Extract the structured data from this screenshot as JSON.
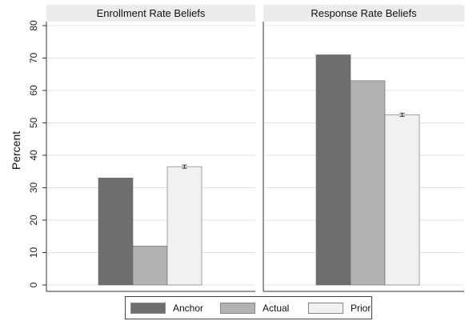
{
  "chart_data": {
    "type": "bar",
    "ylabel": "Percent",
    "ylim": [
      0,
      80
    ],
    "yticks": [
      0,
      10,
      20,
      30,
      40,
      50,
      60,
      70,
      80
    ],
    "grid": true,
    "legend_position": "bottom",
    "series_names": [
      "Anchor",
      "Actual",
      "Prior"
    ],
    "series_colors": [
      "#6e6e6e",
      "#b2b2b2",
      "#f1f1f1"
    ],
    "panels": [
      {
        "title": "Enrollment Rate Beliefs",
        "values": [
          33,
          12,
          36.5
        ],
        "error_bar": {
          "series": "Prior",
          "low": 36,
          "high": 37
        }
      },
      {
        "title": "Response Rate Beliefs",
        "values": [
          71,
          63,
          52.5
        ],
        "error_bar": {
          "series": "Prior",
          "low": 52,
          "high": 53
        }
      }
    ]
  }
}
